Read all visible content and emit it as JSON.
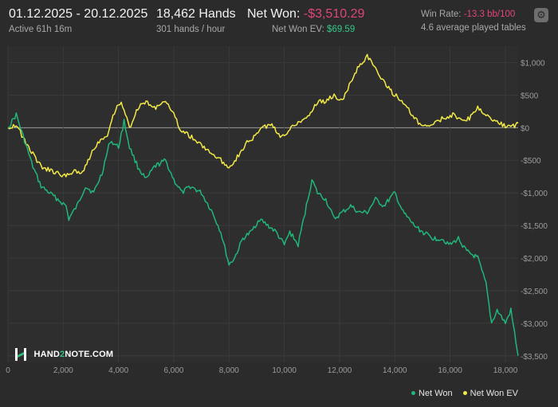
{
  "header": {
    "date_range": "01.12.2025 - 20.12.2025",
    "active": "Active 61h 16m",
    "hands": "18,462 Hands",
    "hands_per_hour": "301 hands / hour",
    "net_won_label": "Net Won:",
    "net_won_value": "-$3,510.29",
    "net_won_ev_label": "Net Won  EV:",
    "net_won_ev_value": "$69.59",
    "win_rate_label": "Win Rate:",
    "win_rate_value": "-13.3 bb/100",
    "tables": "4.6 average played tables",
    "settings_icon": "gear-icon"
  },
  "logo": {
    "text_a": "HAND",
    "text_b": "2",
    "text_c": "NOTE.COM"
  },
  "colors": {
    "background": "#2b2b2b",
    "net_won": "#20b77a",
    "net_won_ev": "#f2e946",
    "negative": "#e0457a",
    "positive": "#33c98a",
    "zero_line": "#9a9a9a",
    "grid": "#3d3d3d"
  },
  "chart_data": {
    "type": "line",
    "xlabel": "",
    "ylabel": "",
    "xlim": [
      0,
      18462
    ],
    "ylim": [
      -3600,
      1250
    ],
    "x_ticks": [
      0,
      2000,
      4000,
      6000,
      8000,
      10000,
      12000,
      14000,
      16000,
      18000
    ],
    "x_tick_labels": [
      "0",
      "2,000",
      "4,000",
      "6,000",
      "8,000",
      "10,000",
      "12,000",
      "14,000",
      "16,000",
      "18,000"
    ],
    "y_ticks": [
      1000,
      500,
      0,
      -500,
      -1000,
      -1500,
      -2000,
      -2500,
      -3000,
      -3500
    ],
    "y_tick_labels": [
      "$1,000",
      "$500",
      "$0",
      "-$500",
      "-$1,000",
      "-$1,500",
      "-$2,000",
      "-$2,500",
      "-$3,000",
      "-$3,500"
    ],
    "grid": true,
    "legend_position": "bottom-right",
    "series": [
      {
        "name": "Net Won",
        "color": "#20b77a",
        "x": [
          0,
          300,
          600,
          900,
          1200,
          1500,
          1800,
          2100,
          2200,
          2500,
          2800,
          3100,
          3400,
          3700,
          4000,
          4200,
          4400,
          4700,
          5000,
          5300,
          5700,
          6000,
          6300,
          6600,
          7000,
          7400,
          7700,
          8000,
          8200,
          8500,
          8800,
          9100,
          9400,
          9700,
          10000,
          10200,
          10500,
          10800,
          11000,
          11200,
          11500,
          11800,
          12100,
          12400,
          12700,
          13000,
          13300,
          13600,
          14000,
          14300,
          14700,
          15000,
          15400,
          15700,
          16000,
          16300,
          16600,
          17000,
          17300,
          17500,
          17700,
          18000,
          18200,
          18462
        ],
        "y": [
          0,
          200,
          -200,
          -600,
          -900,
          -1000,
          -1100,
          -1200,
          -1400,
          -1200,
          -900,
          -1000,
          -700,
          -200,
          -300,
          100,
          -300,
          -600,
          -800,
          -600,
          -500,
          -800,
          -1000,
          -900,
          -1000,
          -1300,
          -1600,
          -2100,
          -2000,
          -1700,
          -1600,
          -1400,
          -1500,
          -1600,
          -1800,
          -1600,
          -1800,
          -1200,
          -800,
          -1000,
          -1100,
          -1400,
          -1300,
          -1200,
          -1300,
          -1300,
          -1100,
          -1200,
          -1000,
          -1300,
          -1500,
          -1600,
          -1700,
          -1700,
          -1800,
          -1700,
          -1900,
          -2000,
          -2400,
          -3000,
          -2800,
          -3000,
          -2800,
          -3500
        ]
      },
      {
        "name": "Net Won  EV",
        "color": "#f2e946",
        "x": [
          0,
          300,
          600,
          900,
          1200,
          1500,
          1800,
          2100,
          2400,
          2700,
          3000,
          3300,
          3600,
          3900,
          4100,
          4400,
          4700,
          5000,
          5300,
          5600,
          5900,
          6200,
          6500,
          6800,
          7100,
          7400,
          7700,
          8000,
          8300,
          8600,
          8900,
          9200,
          9500,
          9800,
          10000,
          10300,
          10600,
          10900,
          11200,
          11500,
          11800,
          12100,
          12400,
          12700,
          13000,
          13300,
          13600,
          14000,
          14300,
          14600,
          14900,
          15200,
          15500,
          15800,
          16100,
          16400,
          16700,
          17000,
          17300,
          17600,
          17900,
          18200,
          18462
        ],
        "y": [
          0,
          50,
          -200,
          -400,
          -600,
          -650,
          -700,
          -750,
          -650,
          -700,
          -400,
          -200,
          -100,
          300,
          400,
          0,
          300,
          400,
          300,
          400,
          300,
          0,
          -100,
          -200,
          -300,
          -400,
          -500,
          -600,
          -450,
          -250,
          -150,
          0,
          50,
          -100,
          -150,
          50,
          100,
          200,
          400,
          400,
          500,
          400,
          700,
          950,
          1100,
          900,
          700,
          500,
          400,
          200,
          50,
          0,
          100,
          150,
          200,
          100,
          150,
          300,
          200,
          100,
          50,
          0,
          69.59
        ]
      }
    ]
  }
}
